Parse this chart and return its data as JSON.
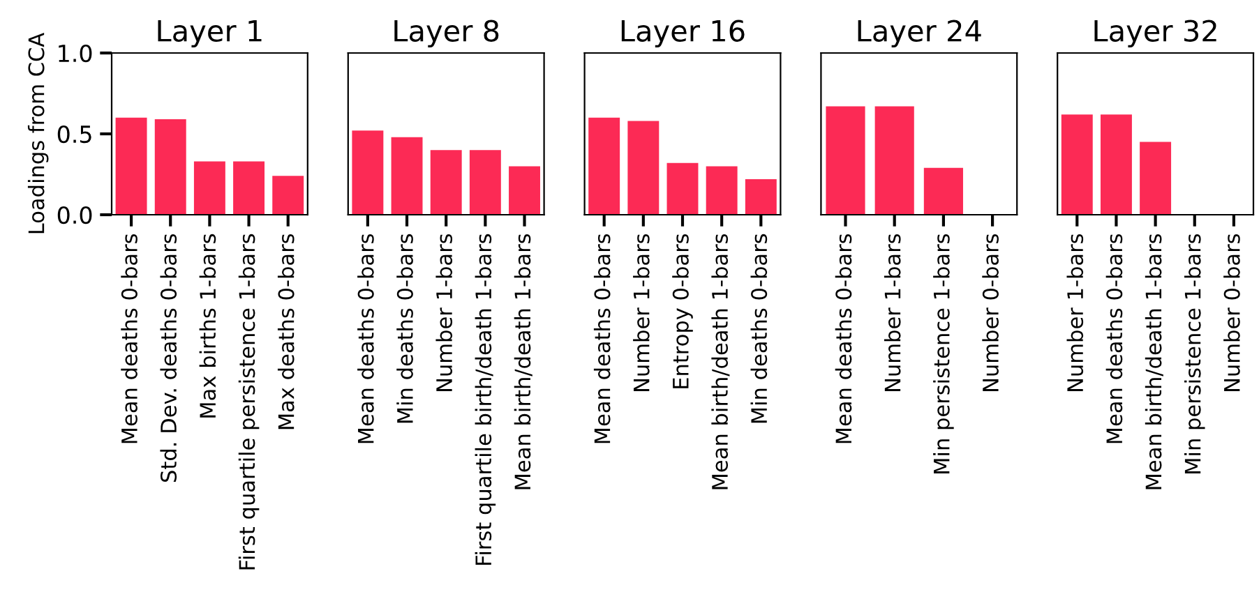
{
  "chart_data": [
    {
      "type": "bar",
      "title": "Layer 1",
      "ylabel": "Loadings from CCA",
      "categories": [
        "Mean deaths 0-bars",
        "Std. Dev. deaths 0-bars",
        "Max births 1-bars",
        "First quartile persistence 1-bars",
        "Max deaths 0-bars"
      ],
      "values": [
        0.6,
        0.59,
        0.33,
        0.33,
        0.24
      ],
      "color": "#fc2a55",
      "ylim": [
        0,
        1
      ],
      "yticks": [
        {
          "value": 0,
          "label": "0.0"
        },
        0.5,
        {
          "value": 1,
          "label": "1.0"
        }
      ]
    },
    {
      "type": "bar",
      "title": "Layer 8",
      "categories": [
        "Mean deaths 0-bars",
        "Min deaths 0-bars",
        "Number 1-bars",
        "First quartile birth/death 1-bars",
        "Mean birth/death 1-bars"
      ],
      "values": [
        0.52,
        0.48,
        0.4,
        0.4,
        0.3
      ],
      "color": "#fc2a55",
      "ylim": [
        0,
        1
      ],
      "tick_labels": "x"
    },
    {
      "type": "bar",
      "title": "Layer 16",
      "categories": [
        "Mean deaths 0-bars",
        "Number 1-bars",
        "Entropy 0-bars",
        "Mean birth/death 1-bars",
        "Min deaths 0-bars"
      ],
      "values": [
        0.6,
        0.58,
        0.32,
        0.3,
        0.22
      ],
      "color": "#fc2a55",
      "ylim": [
        0,
        1
      ],
      "tick_labels": "x"
    },
    {
      "type": "bar",
      "title": "Layer 24",
      "categories": [
        "Mean deaths 0-bars",
        "Number 1-bars",
        "Min persistence 1-bars",
        "Number 0-bars"
      ],
      "values": [
        0.67,
        0.67,
        0.29,
        0
      ],
      "color": "#fc2a55",
      "ylim": [
        0,
        1
      ],
      "tick_labels": "x"
    },
    {
      "type": "bar",
      "title": "Layer 32",
      "categories": [
        "Number 1-bars",
        "Mean deaths 0-bars",
        "Mean birth/death 1-bars",
        "Min persistence 1-bars",
        "Number 0-bars"
      ],
      "values": [
        0.62,
        0.62,
        0.45,
        0,
        0
      ],
      "color": "#fc2a55",
      "ylim": [
        0,
        1
      ],
      "tick_labels": "x"
    }
  ]
}
